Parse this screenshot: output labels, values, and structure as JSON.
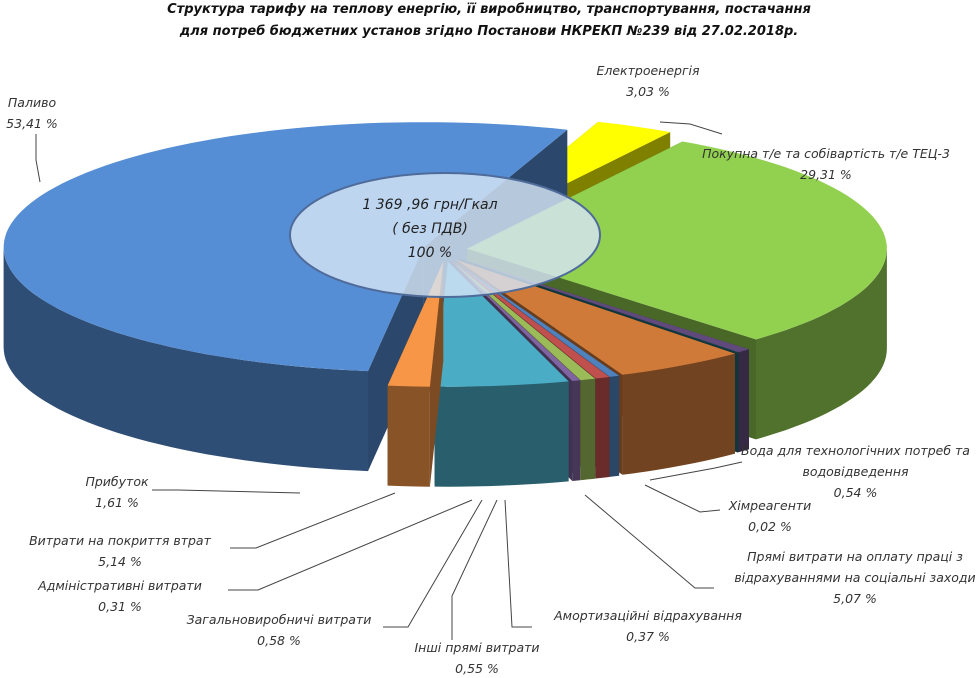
{
  "chart_data": {
    "type": "pie",
    "title": [
      "Структура тарифу на теплову енергію, її виробництво, транспортування, постачання",
      "для потреб бюджетних установ згідно Постанови НКРЕКП №239 від 27.02.2018р."
    ],
    "center_label": [
      "1 369 ,96 грн/Гкал",
      "( без ПДВ)",
      "100 %"
    ],
    "categories": [
      "Електроенергія",
      "Покупна т/е та собівартість т/е ТЕЦ-3",
      "Вода для технологічних потреб та водовідведення",
      "Хімреагенти",
      "Прямі витрати на оплату праці з відрахуваннями на соціальні заходи",
      "Амортизаційні відрахування",
      "Інші прямі витрати",
      "Загальновиробничі витрати",
      "Адміністративні витрати",
      "Витрати на покриття втрат",
      "Прибуток",
      "Паливо"
    ],
    "values": [
      3.03,
      29.31,
      0.54,
      0.02,
      5.07,
      0.37,
      0.55,
      0.58,
      0.31,
      5.14,
      1.61,
      53.41
    ],
    "value_labels": [
      "3,03 %",
      "29,31 %",
      "0,54 %",
      "0,02 %",
      "5,07 %",
      "0,37 %",
      "0,55 %",
      "0,58 %",
      "0,31 %",
      "5,14 %",
      "1,61 %",
      "53,41 %"
    ],
    "colors": [
      "#ffff00",
      "#92d050",
      "#604a7b",
      "#1f6b75",
      "#d07a3a",
      "#4f81bd",
      "#c0504d",
      "#9bbb59",
      "#8064a2",
      "#4bacc6",
      "#f79646",
      "#558ed5"
    ]
  }
}
